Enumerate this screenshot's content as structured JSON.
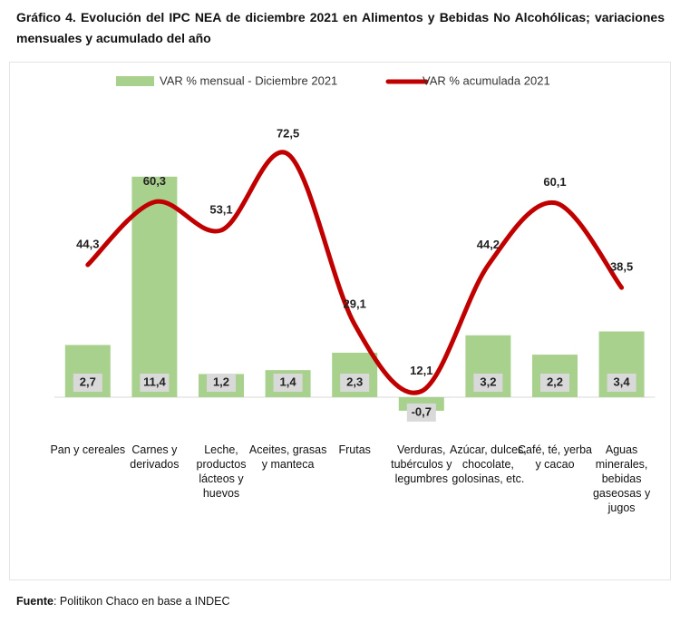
{
  "chart_data": {
    "type": "bar-line",
    "title": "Gráfico 4. Evolución del IPC NEA de diciembre 2021 en Alimentos y Bebidas No Alcohólicas; variaciones mensuales y acumulado del año",
    "categories": [
      "Pan y cereales",
      "Carnes y derivados",
      "Leche, productos lácteos y huevos",
      "Aceites, grasas y manteca",
      "Frutas",
      "Verduras, tubérculos y legumbres",
      "Azúcar, dulces, chocolate, golosinas, etc.",
      "Café, té, yerba y cacao",
      "Aguas minerales, bebidas gaseosas y jugos"
    ],
    "series": [
      {
        "name": "VAR % mensual - Diciembre 2021",
        "type": "bar",
        "color": "#a9d18e",
        "values": [
          2.7,
          11.4,
          1.2,
          1.4,
          2.3,
          -0.7,
          3.2,
          2.2,
          3.4
        ],
        "value_labels": [
          "2,7",
          "11,4",
          "1,2",
          "1,4",
          "2,3",
          "-0,7",
          "3,2",
          "2,2",
          "3,4"
        ]
      },
      {
        "name": "VAR % acumulada 2021",
        "type": "line",
        "axis": "y2",
        "color": "#c00000",
        "values": [
          44.3,
          60.3,
          53.1,
          72.5,
          29.1,
          12.1,
          44.2,
          60.1,
          38.5
        ],
        "value_labels": [
          "44,3",
          "60,3",
          "53,1",
          "72,5",
          "29,1",
          "12,1",
          "44,2",
          "60,1",
          "38,5"
        ]
      }
    ],
    "ylim": [
      -1.5,
      13.5
    ],
    "y2lim": [
      3.2,
      77.1
    ],
    "legend": "top",
    "source_label": "Fuente",
    "source_text": ": Politikon Chaco en base a INDEC"
  }
}
